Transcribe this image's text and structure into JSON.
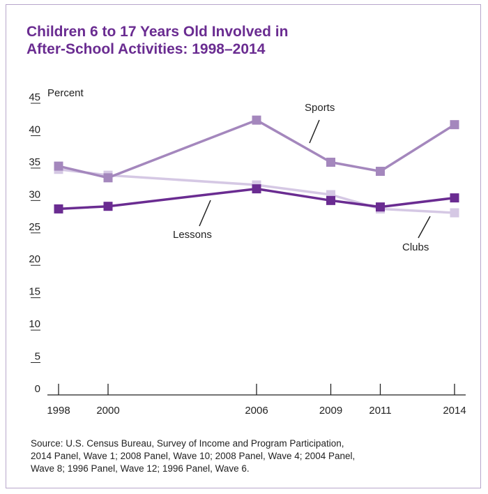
{
  "title_lines": [
    "Children 6 to 17 Years Old Involved in",
    "After-School Activities: 1998–2014"
  ],
  "source_lines": [
    "Source: U.S. Census Bureau, Survey of Income and Program Participation,",
    "2014 Panel, Wave 1; 2008 Panel, Wave 10; 2008 Panel, Wave 4; 2004 Panel,",
    "Wave 8; 1996 Panel, Wave 12; 1996 Panel, Wave 6."
  ],
  "colors": {
    "title": "#6a2c91",
    "sports": "#a487bd",
    "clubs": "#d5c8e4",
    "lessons": "#6a2c91",
    "axis": "#222222",
    "frame": "#b7a6cb"
  },
  "chart_data": {
    "type": "line",
    "title": "Children 6 to 17 Years Old Involved in After-School Activities: 1998–2014",
    "ylabel": "Percent",
    "xlabel": "",
    "ylim": [
      0,
      45
    ],
    "yticks": [
      0,
      5,
      10,
      15,
      20,
      25,
      30,
      35,
      40,
      45
    ],
    "x": [
      1998,
      2000,
      2006,
      2009,
      2011,
      2014
    ],
    "grid": false,
    "series": [
      {
        "name": "Clubs",
        "color": "#d5c8e4",
        "values": [
          34.8,
          33.9,
          32.4,
          30.9,
          28.7,
          28.1
        ]
      },
      {
        "name": "Sports",
        "color": "#a487bd",
        "values": [
          35.3,
          33.5,
          42.4,
          35.9,
          34.5,
          41.7
        ]
      },
      {
        "name": "Lessons",
        "color": "#6a2c91",
        "values": [
          28.7,
          29.1,
          31.8,
          30.0,
          29.0,
          30.4
        ]
      }
    ]
  }
}
